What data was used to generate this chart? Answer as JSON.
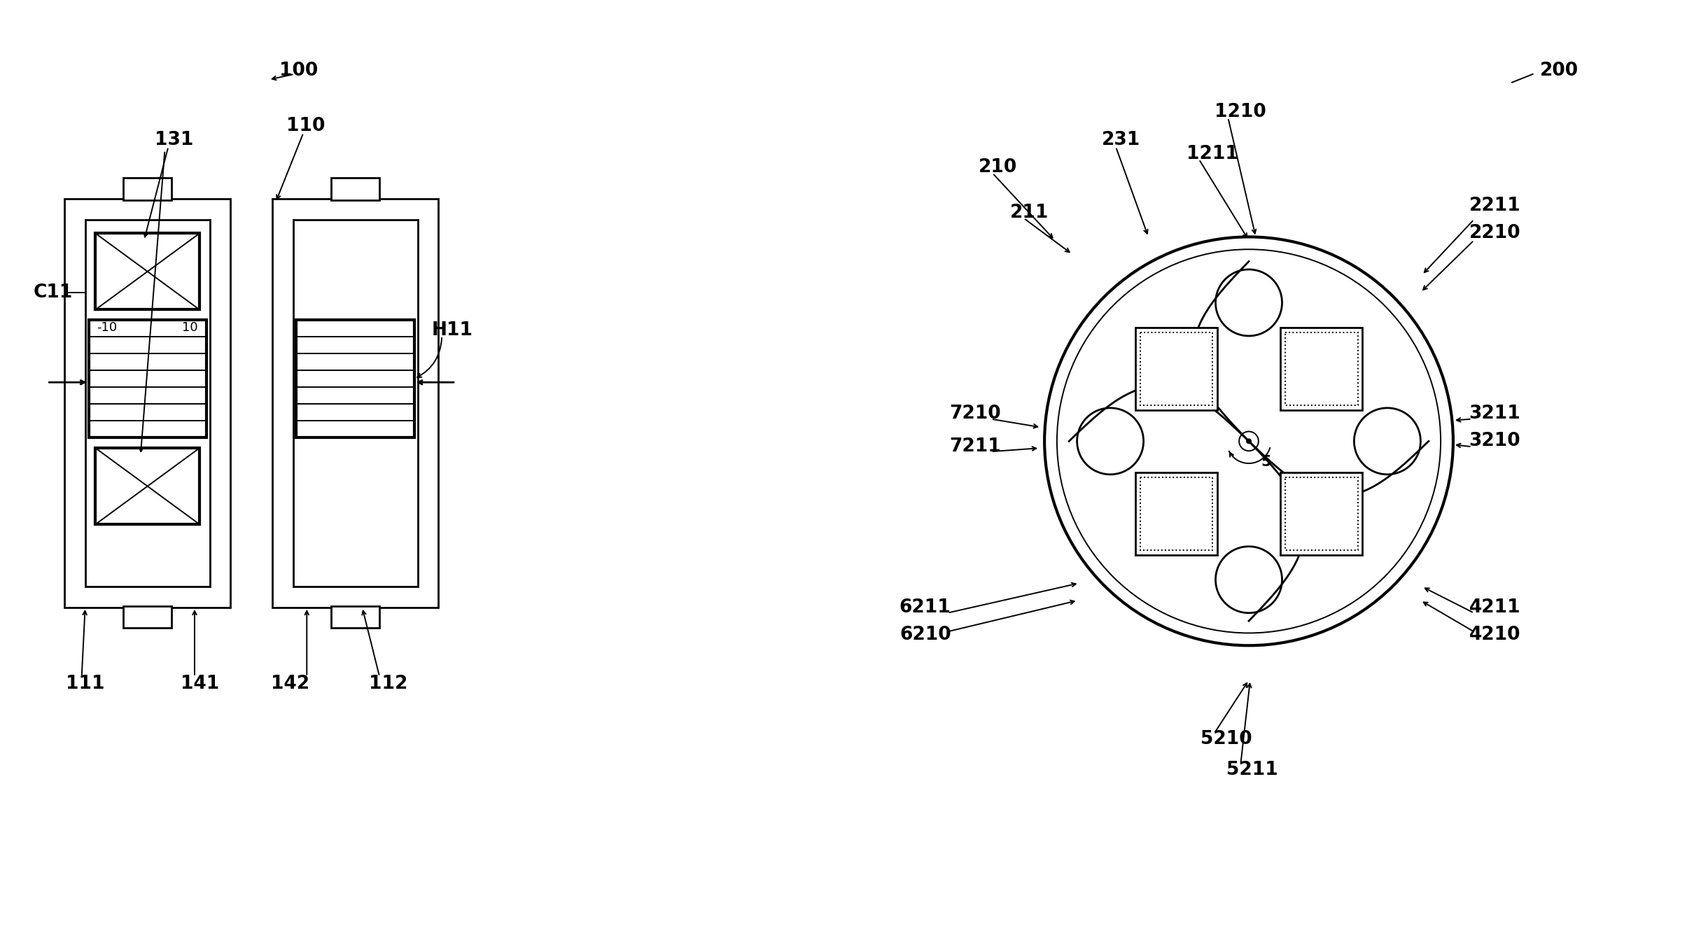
{
  "bg_color": "#ffffff",
  "line_color": "#000000",
  "figsize": [
    24.4,
    13.23
  ],
  "dpi": 100,
  "lw_thick": 3.0,
  "lw_med": 2.0,
  "lw_thin": 1.4,
  "fs_label": 19,
  "fs_small": 13
}
